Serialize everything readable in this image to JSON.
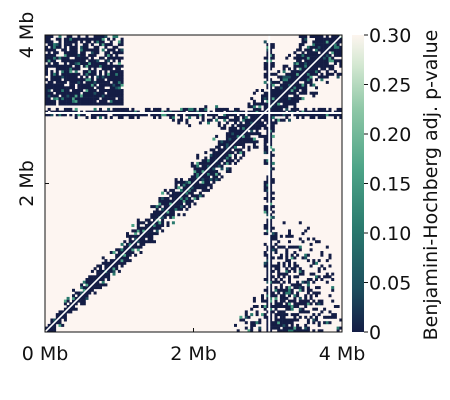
{
  "chart_data": {
    "type": "heatmap",
    "title": "",
    "xlabel": "",
    "ylabel": "",
    "x_ticks": [
      "0 Mb",
      "2 Mb",
      "4 Mb"
    ],
    "y_ticks": [
      "2 Mb",
      "4 Mb"
    ],
    "x_tick_values": [
      0,
      2,
      4
    ],
    "y_tick_values": [
      2,
      4
    ],
    "xlim": [
      0,
      4
    ],
    "ylim": [
      0,
      4
    ],
    "colorbar": {
      "label": "Benjamini-Hochberg adj. p-value",
      "range": [
        0,
        0.3
      ],
      "ticks": [
        "0",
        "0.05",
        "0.10",
        "0.15",
        "0.20",
        "0.25",
        "0.30"
      ],
      "tick_values": [
        0,
        0.05,
        0.1,
        0.15,
        0.2,
        0.25,
        0.3
      ],
      "colors": [
        "#141d45",
        "#1d4f5e",
        "#2a7a6e",
        "#4da487",
        "#8ec7a6",
        "#d4e8d2",
        "#fdf5ef"
      ]
    },
    "background_color": "#fdf5f1",
    "significant_color": "#141d45",
    "features": [
      {
        "kind": "diagonal",
        "from_mb": 0,
        "to_mb": 4
      },
      {
        "kind": "boundary_line",
        "orientation": "vertical",
        "position_mb": 3.02
      },
      {
        "kind": "boundary_line",
        "orientation": "horizontal",
        "position_mb": 2.95
      }
    ]
  }
}
